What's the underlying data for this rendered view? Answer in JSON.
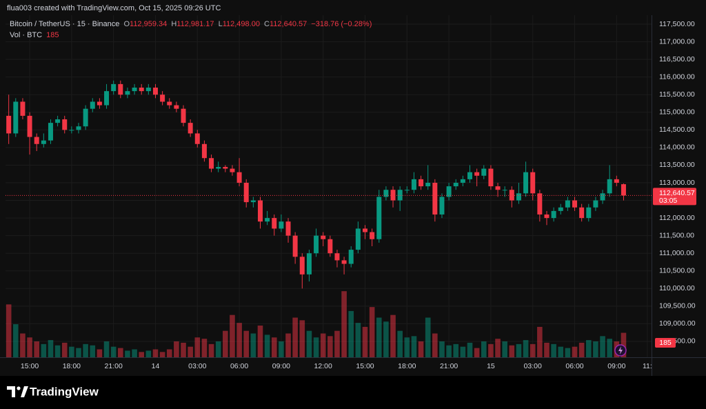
{
  "header": {
    "attribution": "flua003 created with TradingView.com, Oct 15, 2025 09:26 UTC"
  },
  "legend": {
    "symbol": "Bitcoin / TetherUS · 15 · Binance",
    "open_label": "O",
    "open": "112,959.34",
    "high_label": "H",
    "high": "112,981.17",
    "low_label": "L",
    "low": "112,498.00",
    "close_label": "C",
    "close": "112,640.57",
    "change": "−318.76 (−0.28%)",
    "volume_label": "Vol · BTC",
    "volume": "185"
  },
  "chart_data": {
    "type": "candlestick",
    "up_color": "#089981",
    "down_color": "#f23645",
    "grid": true,
    "x": [
      13.5,
      14,
      14.5,
      15,
      15.5,
      16,
      16.5,
      17,
      17.5,
      18,
      18.5,
      19,
      19.5,
      20,
      20.5,
      21,
      21.5,
      22,
      22.5,
      23,
      23.5,
      24,
      24.5,
      25,
      25.5,
      26,
      26.5,
      27,
      27.5,
      28,
      28.5,
      29,
      29.5,
      30,
      30.5,
      31,
      31.5,
      32,
      32.5,
      33,
      33.5,
      34,
      34.5,
      35,
      35.5,
      36,
      36.5,
      37,
      37.5,
      38,
      38.5,
      39,
      39.5,
      40,
      40.5,
      41,
      41.5,
      42,
      42.5,
      43,
      43.5,
      44,
      44.5,
      45,
      45.5,
      46,
      46.5,
      47,
      47.5,
      48,
      48.5,
      49,
      49.5,
      50,
      50.5,
      51,
      51.5,
      52,
      52.5,
      53,
      53.5,
      54,
      54.5,
      55,
      55.5,
      56,
      56.5,
      57,
      57.5
    ],
    "open": [
      114900,
      114400,
      115300,
      114900,
      114300,
      114100,
      114200,
      114700,
      114800,
      114500,
      114500,
      114600,
      115100,
      115300,
      115200,
      115600,
      115800,
      115500,
      115600,
      115700,
      115600,
      115700,
      115500,
      115300,
      115200,
      115100,
      114700,
      114400,
      114100,
      113700,
      113400,
      113450,
      113400,
      113300,
      113000,
      112450,
      112500,
      111900,
      112000,
      111700,
      111900,
      111500,
      110900,
      110400,
      111000,
      111500,
      111400,
      111000,
      110800,
      110700,
      111100,
      111700,
      111600,
      111400,
      112600,
      112800,
      112500,
      112800,
      112800,
      113100,
      112900,
      113000,
      112100,
      112600,
      112900,
      113000,
      113100,
      113300,
      113200,
      113400,
      112900,
      112800,
      112800,
      112500,
      112700,
      113300,
      112700,
      112100,
      112000,
      112200,
      112300,
      112500,
      112300,
      112000,
      112300,
      112500,
      112700,
      113100,
      112959.34
    ],
    "high": [
      115500,
      115400,
      115400,
      115000,
      114400,
      114400,
      114800,
      114900,
      114900,
      114600,
      114700,
      115200,
      115400,
      115400,
      115800,
      115900,
      115900,
      115700,
      115800,
      115800,
      115800,
      115800,
      115600,
      115400,
      115300,
      115200,
      114800,
      114500,
      114200,
      113800,
      113600,
      113500,
      113500,
      113700,
      113100,
      112600,
      112600,
      112200,
      112100,
      112100,
      112000,
      111600,
      111000,
      111100,
      111700,
      111600,
      111500,
      111100,
      110900,
      111200,
      111900,
      111800,
      111700,
      112800,
      112900,
      112900,
      112900,
      112900,
      113300,
      113200,
      113500,
      113100,
      112700,
      113000,
      113100,
      113200,
      113500,
      113400,
      113500,
      113500,
      113000,
      112900,
      112900,
      113000,
      113600,
      113400,
      112800,
      112200,
      112300,
      112400,
      112600,
      112600,
      112400,
      112400,
      112600,
      112800,
      113500,
      113200,
      112981.17
    ],
    "low": [
      114100,
      114300,
      114800,
      113800,
      113900,
      114000,
      114100,
      114600,
      114400,
      114400,
      114400,
      114500,
      115000,
      115100,
      115100,
      115500,
      115400,
      115400,
      115500,
      115500,
      115500,
      115400,
      115200,
      115100,
      115000,
      114600,
      114300,
      114000,
      113600,
      113300,
      113300,
      113300,
      113200,
      112900,
      112300,
      112300,
      111700,
      111800,
      111500,
      111600,
      111300,
      110700,
      110000,
      110200,
      110900,
      111200,
      110900,
      110600,
      110400,
      110600,
      111000,
      111400,
      111200,
      111300,
      112500,
      112300,
      112200,
      112700,
      112700,
      112800,
      112800,
      111900,
      112000,
      112500,
      112800,
      112900,
      113000,
      112900,
      113100,
      112800,
      112600,
      112600,
      112300,
      112400,
      112600,
      112500,
      111900,
      111800,
      111900,
      112100,
      112200,
      112200,
      111900,
      111900,
      112200,
      112400,
      112600,
      112900,
      112498
    ],
    "close": [
      114400,
      115300,
      114900,
      114300,
      114100,
      114200,
      114700,
      114800,
      114500,
      114500,
      114600,
      115100,
      115300,
      115200,
      115600,
      115800,
      115500,
      115600,
      115700,
      115600,
      115700,
      115500,
      115300,
      115200,
      115100,
      114700,
      114400,
      114100,
      113700,
      113400,
      113450,
      113400,
      113300,
      113000,
      112450,
      112500,
      111900,
      112000,
      111700,
      111900,
      111500,
      110900,
      110400,
      111000,
      111500,
      111400,
      111000,
      110800,
      110700,
      111100,
      111700,
      111600,
      111400,
      112600,
      112800,
      112500,
      112800,
      112800,
      113100,
      112900,
      113000,
      112100,
      112600,
      112900,
      113000,
      113100,
      113300,
      113200,
      113400,
      112900,
      112800,
      112800,
      112500,
      112700,
      113300,
      112700,
      112100,
      112000,
      112200,
      112300,
      112500,
      112300,
      112000,
      112300,
      112500,
      112700,
      113100,
      113000,
      112640.57
    ],
    "volume": [
      400,
      250,
      180,
      150,
      120,
      100,
      130,
      90,
      110,
      80,
      70,
      100,
      90,
      60,
      120,
      80,
      70,
      50,
      60,
      40,
      50,
      60,
      40,
      60,
      120,
      110,
      80,
      150,
      140,
      100,
      120,
      200,
      320,
      260,
      200,
      180,
      240,
      170,
      150,
      120,
      180,
      300,
      280,
      200,
      150,
      180,
      160,
      200,
      500,
      350,
      260,
      230,
      380,
      300,
      270,
      320,
      200,
      150,
      160,
      120,
      300,
      180,
      120,
      90,
      100,
      80,
      110,
      70,
      120,
      100,
      140,
      120,
      90,
      100,
      130,
      100,
      230,
      110,
      100,
      80,
      70,
      80,
      110,
      130,
      120,
      160,
      140,
      120,
      185
    ],
    "xlim": [
      13.27,
      59.5
    ],
    "xticks": [
      {
        "value": 15,
        "label": "15:00"
      },
      {
        "value": 18,
        "label": "18:00"
      },
      {
        "value": 21,
        "label": "21:00"
      },
      {
        "value": 24,
        "label": "14"
      },
      {
        "value": 27,
        "label": "03:00"
      },
      {
        "value": 30,
        "label": "06:00"
      },
      {
        "value": 33,
        "label": "09:00"
      },
      {
        "value": 36,
        "label": "12:00"
      },
      {
        "value": 39,
        "label": "15:00"
      },
      {
        "value": 42,
        "label": "18:00"
      },
      {
        "value": 45,
        "label": "21:00"
      },
      {
        "value": 48,
        "label": "15"
      },
      {
        "value": 51,
        "label": "03:00"
      },
      {
        "value": 54,
        "label": "06:00"
      },
      {
        "value": 57,
        "label": "09:00"
      },
      {
        "value": 59.2,
        "label": "11:"
      }
    ],
    "ylim": [
      108049,
      117755
    ],
    "yticks": [
      {
        "value": 108500,
        "label": "108,500.00"
      },
      {
        "value": 109000,
        "label": "109,000.00"
      },
      {
        "value": 109500,
        "label": "109,500.00"
      },
      {
        "value": 110000,
        "label": "110,000.00"
      },
      {
        "value": 110500,
        "label": "110,500.00"
      },
      {
        "value": 111000,
        "label": "111,000.00"
      },
      {
        "value": 111500,
        "label": "111,500.00"
      },
      {
        "value": 112000,
        "label": "112,000.00"
      },
      {
        "value": 112500,
        "label": "112,500.00"
      },
      {
        "value": 113000,
        "label": "113,000.00"
      },
      {
        "value": 113500,
        "label": "113,500.00"
      },
      {
        "value": 114000,
        "label": "114,000.00"
      },
      {
        "value": 114500,
        "label": "114,500.00"
      },
      {
        "value": 115000,
        "label": "115,000.00"
      },
      {
        "value": 115500,
        "label": "115,500.00"
      },
      {
        "value": 116000,
        "label": "116,000.00"
      },
      {
        "value": 116500,
        "label": "116,500.00"
      },
      {
        "value": 117000,
        "label": "117,000.00"
      },
      {
        "value": 117500,
        "label": "117,500.00"
      }
    ],
    "volume_ylim": [
      0,
      600
    ],
    "last_price": {
      "value": 112640.57,
      "label": "112,640.57",
      "countdown": "03:05"
    },
    "last_volume_label": "185"
  },
  "footer": {
    "brand": "TradingView"
  }
}
